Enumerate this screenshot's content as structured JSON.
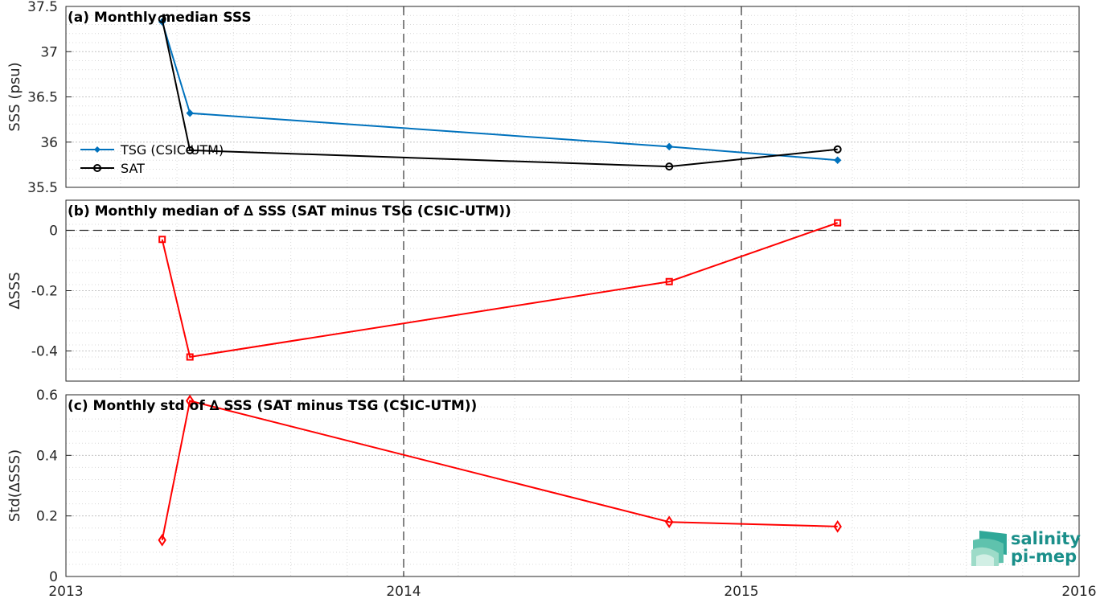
{
  "chart_data": [
    {
      "id": "a",
      "type": "line",
      "title": "(a) Monthly median SSS",
      "ylabel": "SSS (psu)",
      "xlim": [
        "2013-01-01",
        "2016-01-01"
      ],
      "ylim": [
        35.5,
        37.5
      ],
      "yticks": [
        "35.5",
        "36",
        "36.5",
        "37",
        "37.5"
      ],
      "grid": true,
      "legend_position": "left",
      "series": [
        {
          "name": "TSG (CSIC-UTM)",
          "color": "#0072BD",
          "marker": "filled-diamond",
          "x": [
            "2013-04-15",
            "2013-05-15",
            "2014-10-15",
            "2015-04-15"
          ],
          "values": [
            37.33,
            36.32,
            35.95,
            35.8
          ]
        },
        {
          "name": "SAT",
          "color": "#000000",
          "marker": "open-circle",
          "x": [
            "2013-04-15",
            "2013-05-15",
            "2014-10-15",
            "2015-04-15"
          ],
          "values": [
            37.36,
            35.91,
            35.73,
            35.92
          ]
        }
      ]
    },
    {
      "id": "b",
      "type": "line",
      "title": "(b) Monthly median of ∆ SSS (SAT minus TSG (CSIC-UTM))",
      "ylabel": "∆SSS",
      "xlim": [
        "2013-01-01",
        "2016-01-01"
      ],
      "ylim": [
        -0.5,
        0.1
      ],
      "yticks": [
        "-0.4",
        "-0.2",
        "0"
      ],
      "grid": true,
      "zero_line": true,
      "series": [
        {
          "color": "#FF0000",
          "marker": "open-square",
          "x": [
            "2013-04-15",
            "2013-05-15",
            "2014-10-15",
            "2015-04-15"
          ],
          "values": [
            -0.03,
            -0.42,
            -0.17,
            0.025
          ]
        }
      ]
    },
    {
      "id": "c",
      "type": "line",
      "title": "(c) Monthly std of ∆ SSS (SAT minus TSG (CSIC-UTM))",
      "ylabel": "Std(∆SSS)",
      "xlim": [
        "2013-01-01",
        "2016-01-01"
      ],
      "ylim": [
        0,
        0.6
      ],
      "yticks": [
        "0",
        "0.2",
        "0.4",
        "0.6"
      ],
      "grid": true,
      "series": [
        {
          "color": "#FF0000",
          "marker": "open-diamond",
          "x": [
            "2013-04-15",
            "2013-05-15",
            "2014-10-15",
            "2015-04-15"
          ],
          "values": [
            0.12,
            0.58,
            0.18,
            0.165
          ]
        }
      ]
    }
  ],
  "xticks": [
    "2013",
    "2014",
    "2015",
    "2016"
  ],
  "xtick_dates": [
    "2013-01-01",
    "2014-01-01",
    "2015-01-01",
    "2016-01-01"
  ],
  "logo": {
    "line1": "salinity",
    "line2": "pi-mep",
    "color": "#1a8f8a"
  }
}
